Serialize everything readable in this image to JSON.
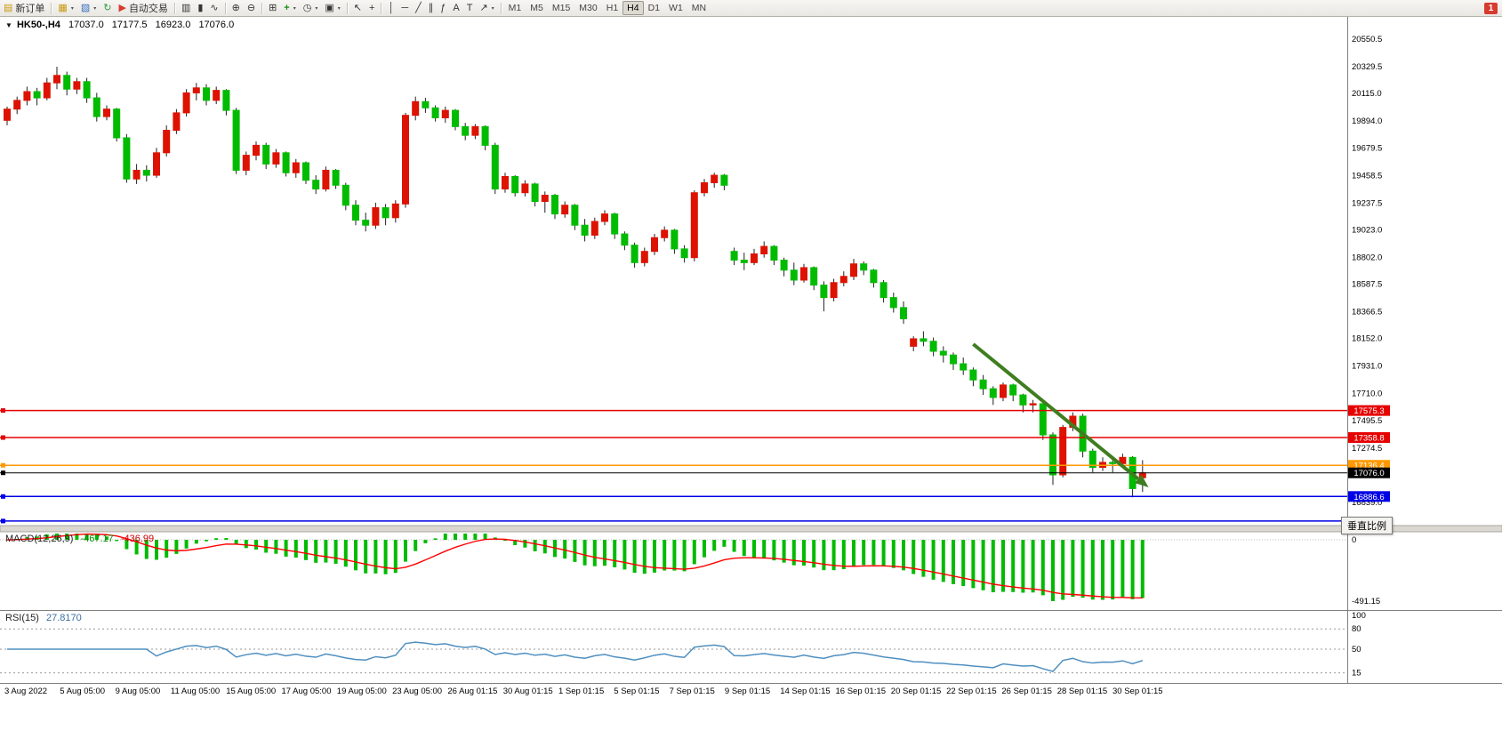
{
  "toolbar": {
    "new_order_label": "新订单",
    "auto_trading_label": "自动交易",
    "timeframes": [
      "M1",
      "M5",
      "M15",
      "M30",
      "H1",
      "H4",
      "D1",
      "W1",
      "MN"
    ],
    "active_timeframe": "H4",
    "notification_badge": "1"
  },
  "icons": {
    "new_order": "▤",
    "new_chart": "▦",
    "profiles": "▧",
    "refresh": "↻",
    "auto_trading": "▶",
    "chart_bar": "▥",
    "chart_candle": "▮",
    "chart_line": "∿",
    "zoom_in": "⊕",
    "zoom_out": "⊖",
    "tile_windows": "⊞",
    "indicators": "+",
    "periods": "◷",
    "templates": "▣",
    "cursor": "↖",
    "crosshair": "+",
    "vline": "│",
    "hline": "─",
    "trendline": "╱",
    "channel": "∥",
    "fibonacci": "ƒ",
    "text": "A",
    "label": "T",
    "arrows": "↗",
    "caret": "▾",
    "header_caret": "▼"
  },
  "chart_header": {
    "symbol_period": "HK50-,H4",
    "open": "17037.0",
    "high": "17177.5",
    "low": "16923.0",
    "close": "17076.0"
  },
  "indicators": {
    "macd": {
      "label": "MACD(12,26,9)",
      "value_main": "-467.17",
      "value_signal": "-436.99",
      "axis_max": "0",
      "axis_min": "-491.15"
    },
    "rsi": {
      "label": "RSI(15)",
      "value": "27.8170",
      "axis_ticks": [
        "100",
        "80",
        "50",
        "15"
      ]
    }
  },
  "tooltip_vertical_scale": "垂直比例",
  "chart_data": {
    "type": "candlestick",
    "symbol": "HK50-",
    "timeframe": "H4",
    "colors": {
      "up": "#dd1200",
      "down": "#00bb00",
      "wick": "#222222",
      "macd_hist": "#00bb00",
      "macd_signal": "#ff0000",
      "rsi_line": "#4f8fc0",
      "arrow": "#3f7d20"
    },
    "price_axis_ticks": [
      20550.5,
      20329.5,
      20115.0,
      19894.0,
      19679.5,
      19458.5,
      19237.5,
      19023.0,
      18802.0,
      18587.5,
      18366.5,
      18152.0,
      17931.0,
      17710.0,
      17495.5,
      17274.5,
      16839.0
    ],
    "time_axis_labels": [
      "3 Aug 2022",
      "5 Aug 05:00",
      "9 Aug 05:00",
      "11 Aug 05:00",
      "15 Aug 05:00",
      "17 Aug 05:00",
      "19 Aug 05:00",
      "23 Aug 05:00",
      "26 Aug 01:15",
      "30 Aug 01:15",
      "1 Sep 01:15",
      "5 Sep 01:15",
      "7 Sep 01:15",
      "9 Sep 01:15",
      "14 Sep 01:15",
      "16 Sep 01:15",
      "20 Sep 01:15",
      "22 Sep 01:15",
      "26 Sep 01:15",
      "28 Sep 01:15",
      "30 Sep 01:15"
    ],
    "horizontal_lines": [
      {
        "price": 17575.3,
        "color": "#e60000",
        "label": "17575.3"
      },
      {
        "price": 17358.8,
        "color": "#e60000",
        "label": "17358.8"
      },
      {
        "price": 17136.4,
        "color": "#ff9900",
        "label": "17136.4"
      },
      {
        "price": 17076.0,
        "color": "#000000",
        "label": "17076.0",
        "current": true
      },
      {
        "price": 16886.6,
        "color": "#0000e6",
        "label": "16886.6"
      },
      {
        "price": 16690.0,
        "color": "#0000e6",
        "label": null
      }
    ],
    "trend_arrow": {
      "from": {
        "bar": 97,
        "price": 18107
      },
      "to": {
        "bar": 114.6,
        "price": 16960
      },
      "color": "#3f7d20"
    },
    "candles": [
      [
        19900,
        20010,
        19860,
        19990
      ],
      [
        19990,
        20090,
        19950,
        20060
      ],
      [
        20060,
        20170,
        20020,
        20130
      ],
      [
        20130,
        20160,
        20020,
        20080
      ],
      [
        20080,
        20240,
        20060,
        20200
      ],
      [
        20200,
        20330,
        20150,
        20260
      ],
      [
        20260,
        20290,
        20100,
        20150
      ],
      [
        20150,
        20240,
        20110,
        20210
      ],
      [
        20210,
        20240,
        20040,
        20080
      ],
      [
        20080,
        20120,
        19890,
        19930
      ],
      [
        19930,
        20020,
        19900,
        19990
      ],
      [
        19990,
        20000,
        19730,
        19760
      ],
      [
        19760,
        19790,
        19400,
        19430
      ],
      [
        19430,
        19550,
        19390,
        19500
      ],
      [
        19500,
        19540,
        19410,
        19460
      ],
      [
        19460,
        19680,
        19440,
        19640
      ],
      [
        19640,
        19860,
        19610,
        19820
      ],
      [
        19820,
        19990,
        19790,
        19960
      ],
      [
        19960,
        20150,
        19930,
        20120
      ],
      [
        20120,
        20200,
        20060,
        20160
      ],
      [
        20160,
        20190,
        20020,
        20060
      ],
      [
        20060,
        20170,
        20030,
        20140
      ],
      [
        20140,
        20150,
        19940,
        19980
      ],
      [
        19980,
        20000,
        19470,
        19500
      ],
      [
        19500,
        19650,
        19460,
        19620
      ],
      [
        19620,
        19730,
        19580,
        19700
      ],
      [
        19700,
        19720,
        19510,
        19550
      ],
      [
        19550,
        19670,
        19520,
        19640
      ],
      [
        19640,
        19650,
        19450,
        19480
      ],
      [
        19480,
        19590,
        19440,
        19560
      ],
      [
        19560,
        19570,
        19390,
        19420
      ],
      [
        19420,
        19460,
        19310,
        19350
      ],
      [
        19350,
        19530,
        19330,
        19500
      ],
      [
        19500,
        19510,
        19350,
        19380
      ],
      [
        19380,
        19400,
        19180,
        19220
      ],
      [
        19220,
        19260,
        19060,
        19100
      ],
      [
        19100,
        19160,
        19010,
        19060
      ],
      [
        19060,
        19240,
        19030,
        19200
      ],
      [
        19200,
        19230,
        19060,
        19120
      ],
      [
        19120,
        19260,
        19080,
        19230
      ],
      [
        19230,
        19960,
        19200,
        19940
      ],
      [
        19940,
        20090,
        19900,
        20050
      ],
      [
        20050,
        20080,
        19960,
        20000
      ],
      [
        20000,
        20020,
        19890,
        19920
      ],
      [
        19920,
        20010,
        19880,
        19980
      ],
      [
        19980,
        19990,
        19820,
        19850
      ],
      [
        19850,
        19880,
        19740,
        19780
      ],
      [
        19780,
        19870,
        19750,
        19850
      ],
      [
        19850,
        19860,
        19660,
        19700
      ],
      [
        19700,
        19720,
        19310,
        19350
      ],
      [
        19350,
        19480,
        19320,
        19450
      ],
      [
        19450,
        19460,
        19290,
        19320
      ],
      [
        19320,
        19420,
        19290,
        19390
      ],
      [
        19390,
        19400,
        19210,
        19250
      ],
      [
        19250,
        19330,
        19160,
        19300
      ],
      [
        19300,
        19310,
        19110,
        19150
      ],
      [
        19150,
        19250,
        19120,
        19220
      ],
      [
        19220,
        19230,
        19020,
        19060
      ],
      [
        19060,
        19110,
        18930,
        18980
      ],
      [
        18980,
        19120,
        18950,
        19090
      ],
      [
        19090,
        19180,
        19060,
        19150
      ],
      [
        19150,
        19160,
        18950,
        18990
      ],
      [
        18990,
        19010,
        18860,
        18900
      ],
      [
        18900,
        18920,
        18720,
        18760
      ],
      [
        18760,
        18880,
        18730,
        18850
      ],
      [
        18850,
        18990,
        18820,
        18960
      ],
      [
        18960,
        19050,
        18930,
        19020
      ],
      [
        19020,
        19030,
        18830,
        18870
      ],
      [
        18870,
        18900,
        18760,
        18800
      ],
      [
        18800,
        19340,
        18770,
        19320
      ],
      [
        19320,
        19430,
        19290,
        19400
      ],
      [
        19400,
        19480,
        19360,
        19460
      ],
      [
        19460,
        19470,
        19340,
        19380
      ],
      [
        18850,
        18880,
        18740,
        18780
      ],
      [
        18780,
        18840,
        18700,
        18760
      ],
      [
        18760,
        18870,
        18740,
        18830
      ],
      [
        18830,
        18930,
        18800,
        18890
      ],
      [
        18890,
        18900,
        18740,
        18780
      ],
      [
        18780,
        18800,
        18650,
        18700
      ],
      [
        18700,
        18760,
        18580,
        18620
      ],
      [
        18620,
        18750,
        18600,
        18720
      ],
      [
        18720,
        18730,
        18540,
        18580
      ],
      [
        18580,
        18610,
        18370,
        18480
      ],
      [
        18480,
        18630,
        18450,
        18600
      ],
      [
        18600,
        18690,
        18570,
        18650
      ],
      [
        18650,
        18790,
        18620,
        18750
      ],
      [
        18750,
        18770,
        18660,
        18700
      ],
      [
        18700,
        18710,
        18560,
        18600
      ],
      [
        18600,
        18620,
        18440,
        18480
      ],
      [
        18480,
        18520,
        18360,
        18400
      ],
      [
        18400,
        18450,
        18270,
        18310
      ],
      [
        18090,
        18170,
        18050,
        18150
      ],
      [
        18150,
        18210,
        18090,
        18130
      ],
      [
        18130,
        18160,
        18010,
        18050
      ],
      [
        18050,
        18090,
        17960,
        18020
      ],
      [
        18020,
        18040,
        17900,
        17950
      ],
      [
        17950,
        18000,
        17860,
        17900
      ],
      [
        17900,
        17920,
        17770,
        17820
      ],
      [
        17820,
        17860,
        17700,
        17750
      ],
      [
        17750,
        17770,
        17620,
        17680
      ],
      [
        17680,
        17800,
        17650,
        17780
      ],
      [
        17780,
        17790,
        17650,
        17700
      ],
      [
        17700,
        17710,
        17560,
        17620
      ],
      [
        17620,
        17660,
        17560,
        17630
      ],
      [
        17630,
        17650,
        17340,
        17380
      ],
      [
        17380,
        17400,
        16980,
        17060
      ],
      [
        17060,
        17460,
        17040,
        17440
      ],
      [
        17440,
        17560,
        17410,
        17530
      ],
      [
        17530,
        17550,
        17200,
        17250
      ],
      [
        17250,
        17270,
        17080,
        17120
      ],
      [
        17120,
        17200,
        17090,
        17160
      ],
      [
        17160,
        17190,
        17080,
        17150
      ],
      [
        17150,
        17230,
        17120,
        17200
      ],
      [
        17200,
        17210,
        16880,
        16950
      ],
      [
        17037,
        17177.5,
        16923,
        17076
      ]
    ]
  }
}
